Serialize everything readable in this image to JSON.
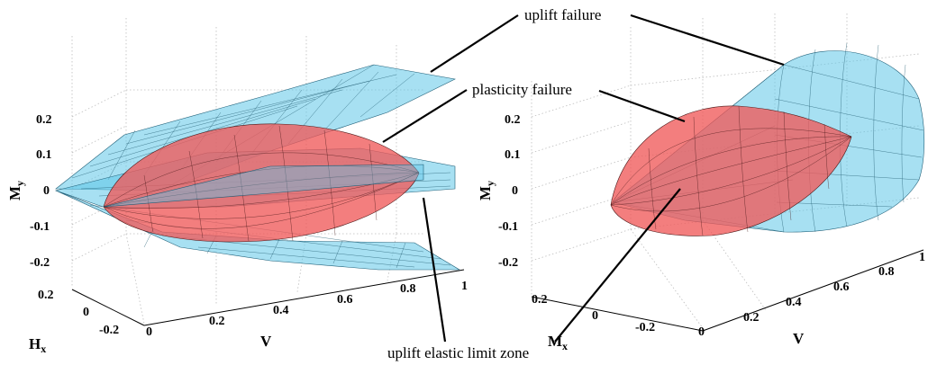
{
  "annotations": {
    "uplift_failure": "uplift failure",
    "plasticity_failure": "plasticity failure",
    "uplift_elastic": "uplift elastic limit zone"
  },
  "left_plot": {
    "ylabel": "M",
    "ylabel_sub": "y",
    "xlabel": "V",
    "zlabel": "H",
    "zlabel_sub": "x",
    "y_ticks": [
      "0.2",
      "0.1",
      "0",
      "-0.1",
      "-0.2"
    ],
    "v_ticks": [
      "0",
      "0.2",
      "0.4",
      "0.6",
      "0.8",
      "1"
    ],
    "h_ticks": [
      "0.2",
      "0",
      "-0.2"
    ]
  },
  "right_plot": {
    "ylabel": "M",
    "ylabel_sub": "y",
    "xlabel": "V",
    "zlabel": "M",
    "zlabel_sub": "x",
    "y_ticks": [
      "0.2",
      "0.1",
      "0",
      "-0.1",
      "-0.2"
    ],
    "v_ticks": [
      "0",
      "0.2",
      "0.4",
      "0.6",
      "0.8",
      "1"
    ],
    "m_ticks": [
      "0.2",
      "0",
      "-0.2"
    ]
  },
  "colors": {
    "uplift_surface": "#5fc6e8",
    "plasticity_surface": "#f05a5a"
  }
}
